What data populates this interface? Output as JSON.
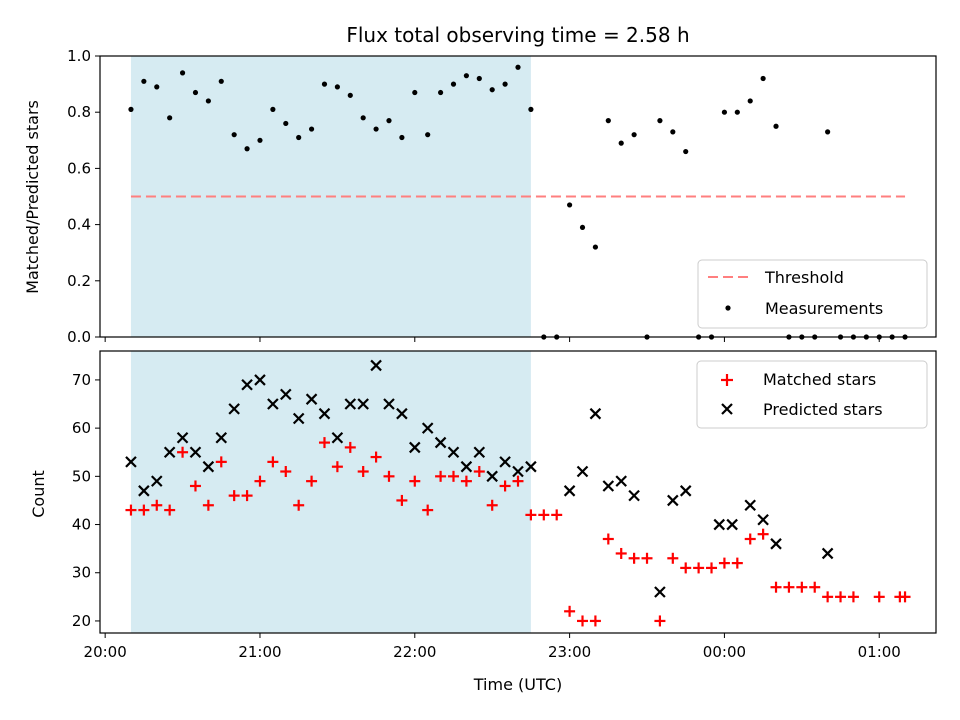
{
  "chart_data": [
    {
      "type": "scatter",
      "title": "Flux total observing time = 2.58 h",
      "xlabel": "",
      "ylabel": "Matched/Predicted stars",
      "ylim": [
        0,
        1.0
      ],
      "yticks": [
        "0.0",
        "0.2",
        "0.4",
        "0.6",
        "0.8",
        "1.0"
      ],
      "xlim": [
        "19:58",
        "01:22"
      ],
      "shaded_interval": [
        "20:10",
        "22:45"
      ],
      "legend_placement": "lower-right",
      "threshold": {
        "name": "Threshold",
        "value": 0.5,
        "x_range": [
          "20:10",
          "01:10"
        ],
        "color": "#ff7f7f",
        "style": "dashed"
      },
      "series": [
        {
          "name": "Measurements",
          "color": "#000000",
          "marker": "dot",
          "points": [
            [
              "20:10",
              0.81
            ],
            [
              "20:15",
              0.91
            ],
            [
              "20:20",
              0.89
            ],
            [
              "20:25",
              0.78
            ],
            [
              "20:30",
              0.94
            ],
            [
              "20:35",
              0.87
            ],
            [
              "20:40",
              0.84
            ],
            [
              "20:45",
              0.91
            ],
            [
              "20:50",
              0.72
            ],
            [
              "20:55",
              0.67
            ],
            [
              "21:00",
              0.7
            ],
            [
              "21:05",
              0.81
            ],
            [
              "21:10",
              0.76
            ],
            [
              "21:15",
              0.71
            ],
            [
              "21:20",
              0.74
            ],
            [
              "21:25",
              0.9
            ],
            [
              "21:30",
              0.89
            ],
            [
              "21:35",
              0.86
            ],
            [
              "21:40",
              0.78
            ],
            [
              "21:45",
              0.74
            ],
            [
              "21:50",
              0.77
            ],
            [
              "21:55",
              0.71
            ],
            [
              "22:00",
              0.87
            ],
            [
              "22:05",
              0.72
            ],
            [
              "22:10",
              0.87
            ],
            [
              "22:15",
              0.9
            ],
            [
              "22:20",
              0.93
            ],
            [
              "22:25",
              0.92
            ],
            [
              "22:30",
              0.88
            ],
            [
              "22:35",
              0.9
            ],
            [
              "22:40",
              0.96
            ],
            [
              "22:45",
              0.81
            ],
            [
              "22:50",
              0.0
            ],
            [
              "22:55",
              0.0
            ],
            [
              "23:00",
              0.47
            ],
            [
              "23:05",
              0.39
            ],
            [
              "23:10",
              0.32
            ],
            [
              "23:15",
              0.77
            ],
            [
              "23:20",
              0.69
            ],
            [
              "23:25",
              0.72
            ],
            [
              "23:30",
              0.0
            ],
            [
              "23:35",
              0.77
            ],
            [
              "23:40",
              0.73
            ],
            [
              "23:45",
              0.66
            ],
            [
              "23:50",
              0.0
            ],
            [
              "23:55",
              0.0
            ],
            [
              "00:00",
              0.8
            ],
            [
              "00:05",
              0.8
            ],
            [
              "00:10",
              0.84
            ],
            [
              "00:15",
              0.92
            ],
            [
              "00:20",
              0.75
            ],
            [
              "00:25",
              0.0
            ],
            [
              "00:30",
              0.0
            ],
            [
              "00:35",
              0.0
            ],
            [
              "00:40",
              0.73
            ],
            [
              "00:45",
              0.0
            ],
            [
              "00:50",
              0.0
            ],
            [
              "00:55",
              0.0
            ],
            [
              "01:00",
              0.0
            ],
            [
              "01:05",
              0.0
            ],
            [
              "01:10",
              0.0
            ]
          ]
        }
      ]
    },
    {
      "type": "scatter",
      "xlabel": "Time (UTC)",
      "ylabel": "Count",
      "ylim": [
        17.5,
        76
      ],
      "yticks": [
        "20",
        "30",
        "40",
        "50",
        "60",
        "70"
      ],
      "xticks": [
        "20:00",
        "21:00",
        "22:00",
        "23:00",
        "00:00",
        "01:00"
      ],
      "xlim": [
        "19:58",
        "01:22"
      ],
      "shaded_interval": [
        "20:10",
        "22:45"
      ],
      "legend_placement": "upper-right",
      "series": [
        {
          "name": "Matched stars",
          "color": "#ff0000",
          "marker": "plus",
          "points": [
            [
              "20:10",
              43
            ],
            [
              "20:15",
              43
            ],
            [
              "20:20",
              44
            ],
            [
              "20:25",
              43
            ],
            [
              "20:30",
              55
            ],
            [
              "20:35",
              48
            ],
            [
              "20:40",
              44
            ],
            [
              "20:45",
              53
            ],
            [
              "20:50",
              46
            ],
            [
              "20:55",
              46
            ],
            [
              "21:00",
              49
            ],
            [
              "21:05",
              53
            ],
            [
              "21:10",
              51
            ],
            [
              "21:15",
              44
            ],
            [
              "21:20",
              49
            ],
            [
              "21:25",
              57
            ],
            [
              "21:30",
              52
            ],
            [
              "21:35",
              56
            ],
            [
              "21:40",
              51
            ],
            [
              "21:45",
              54
            ],
            [
              "21:50",
              50
            ],
            [
              "21:55",
              45
            ],
            [
              "22:00",
              49
            ],
            [
              "22:05",
              43
            ],
            [
              "22:10",
              50
            ],
            [
              "22:15",
              50
            ],
            [
              "22:20",
              49
            ],
            [
              "22:25",
              51
            ],
            [
              "22:30",
              44
            ],
            [
              "22:35",
              48
            ],
            [
              "22:40",
              49
            ],
            [
              "22:45",
              42
            ],
            [
              "22:50",
              42
            ],
            [
              "22:55",
              42
            ],
            [
              "23:00",
              22
            ],
            [
              "23:05",
              20
            ],
            [
              "23:10",
              20
            ],
            [
              "23:15",
              37
            ],
            [
              "23:20",
              34
            ],
            [
              "23:25",
              33
            ],
            [
              "23:30",
              33
            ],
            [
              "23:35",
              20
            ],
            [
              "23:40",
              33
            ],
            [
              "23:45",
              31
            ],
            [
              "23:50",
              31
            ],
            [
              "23:55",
              31
            ],
            [
              "00:00",
              32
            ],
            [
              "00:05",
              32
            ],
            [
              "00:10",
              37
            ],
            [
              "00:15",
              38
            ],
            [
              "00:20",
              27
            ],
            [
              "00:25",
              27
            ],
            [
              "00:30",
              27
            ],
            [
              "00:35",
              27
            ],
            [
              "00:40",
              25
            ],
            [
              "00:45",
              25
            ],
            [
              "00:50",
              25
            ],
            [
              "01:00",
              25
            ],
            [
              "01:08",
              25
            ],
            [
              "01:10",
              25
            ]
          ]
        },
        {
          "name": "Predicted stars",
          "color": "#000000",
          "marker": "x",
          "points": [
            [
              "20:10",
              53
            ],
            [
              "20:15",
              47
            ],
            [
              "20:20",
              49
            ],
            [
              "20:25",
              55
            ],
            [
              "20:30",
              58
            ],
            [
              "20:35",
              55
            ],
            [
              "20:40",
              52
            ],
            [
              "20:45",
              58
            ],
            [
              "20:50",
              64
            ],
            [
              "20:55",
              69
            ],
            [
              "21:00",
              70
            ],
            [
              "21:05",
              65
            ],
            [
              "21:10",
              67
            ],
            [
              "21:15",
              62
            ],
            [
              "21:20",
              66
            ],
            [
              "21:25",
              63
            ],
            [
              "21:30",
              58
            ],
            [
              "21:35",
              65
            ],
            [
              "21:40",
              65
            ],
            [
              "21:45",
              73
            ],
            [
              "21:50",
              65
            ],
            [
              "21:55",
              63
            ],
            [
              "22:00",
              56
            ],
            [
              "22:05",
              60
            ],
            [
              "22:10",
              57
            ],
            [
              "22:15",
              55
            ],
            [
              "22:20",
              52
            ],
            [
              "22:25",
              55
            ],
            [
              "22:30",
              50
            ],
            [
              "22:35",
              53
            ],
            [
              "22:40",
              51
            ],
            [
              "22:45",
              52
            ],
            [
              "23:00",
              47
            ],
            [
              "23:05",
              51
            ],
            [
              "23:10",
              63
            ],
            [
              "23:15",
              48
            ],
            [
              "23:20",
              49
            ],
            [
              "23:25",
              46
            ],
            [
              "23:35",
              26
            ],
            [
              "23:40",
              45
            ],
            [
              "23:45",
              47
            ],
            [
              "23:58",
              40
            ],
            [
              "00:03",
              40
            ],
            [
              "00:10",
              44
            ],
            [
              "00:15",
              41
            ],
            [
              "00:20",
              36
            ],
            [
              "00:40",
              34
            ]
          ]
        }
      ]
    }
  ]
}
